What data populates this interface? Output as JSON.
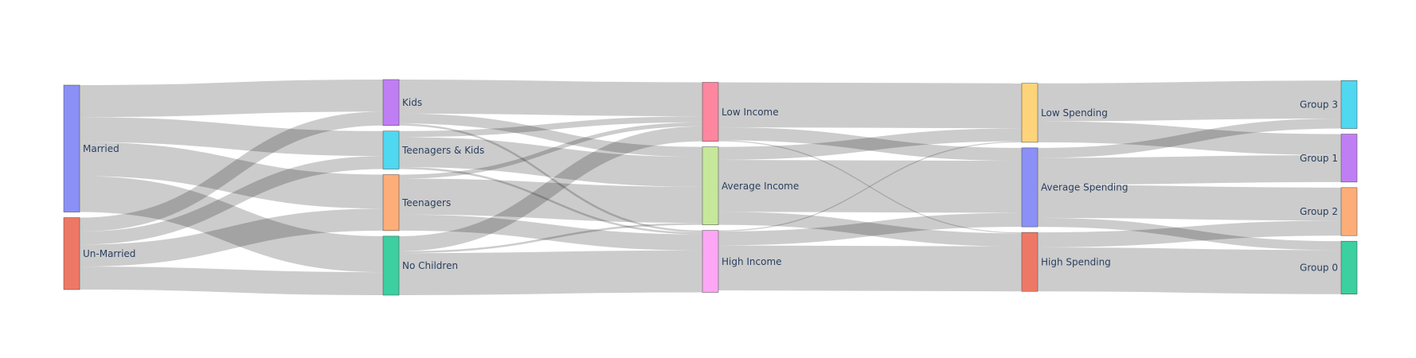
{
  "chart_data": {
    "type": "sankey",
    "title": "",
    "nodes": [
      {
        "id": "married",
        "label": "Married",
        "color": "#8a90f5",
        "column": 0
      },
      {
        "id": "unmarried",
        "label": "Un-Married",
        "color": "#ee7866",
        "column": 0
      },
      {
        "id": "kids",
        "label": "Kids",
        "color": "#c07ef5",
        "column": 1
      },
      {
        "id": "teen_kids",
        "label": "Teenagers & Kids",
        "color": "#4fd8f0",
        "column": 1
      },
      {
        "id": "teenagers",
        "label": "Teenagers",
        "color": "#fdad78",
        "column": 1
      },
      {
        "id": "no_children",
        "label": "No Children",
        "color": "#3ccf9f",
        "column": 1
      },
      {
        "id": "low_income",
        "label": "Low Income",
        "color": "#ff869f",
        "column": 2
      },
      {
        "id": "avg_income",
        "label": "Average Income",
        "color": "#c6e89a",
        "column": 2
      },
      {
        "id": "high_income",
        "label": "High Income",
        "color": "#fda6f5",
        "column": 2
      },
      {
        "id": "low_spending",
        "label": "Low Spending",
        "color": "#fdd47a",
        "column": 3
      },
      {
        "id": "avg_spending",
        "label": "Average Spending",
        "color": "#8a90f5",
        "column": 3
      },
      {
        "id": "high_spending",
        "label": "High Spending",
        "color": "#ee7866",
        "column": 3
      },
      {
        "id": "group3",
        "label": "Group 3",
        "color": "#4fd8f0",
        "column": 4
      },
      {
        "id": "group1",
        "label": "Group 1",
        "color": "#c07ef5",
        "column": 4
      },
      {
        "id": "group2",
        "label": "Group 2",
        "color": "#fdad78",
        "column": 4
      },
      {
        "id": "group0",
        "label": "Group 0",
        "color": "#3ccf9f",
        "column": 4
      }
    ],
    "links": [
      {
        "source": "married",
        "target": "kids",
        "value": 32
      },
      {
        "source": "married",
        "target": "teen_kids",
        "value": 25
      },
      {
        "source": "married",
        "target": "teenagers",
        "value": 34
      },
      {
        "source": "married",
        "target": "no_children",
        "value": 36
      },
      {
        "source": "unmarried",
        "target": "kids",
        "value": 14
      },
      {
        "source": "unmarried",
        "target": "teen_kids",
        "value": 13
      },
      {
        "source": "unmarried",
        "target": "teenagers",
        "value": 22
      },
      {
        "source": "unmarried",
        "target": "no_children",
        "value": 23
      },
      {
        "source": "kids",
        "target": "low_income",
        "value": 34
      },
      {
        "source": "kids",
        "target": "avg_income",
        "value": 10
      },
      {
        "source": "kids",
        "target": "high_income",
        "value": 2
      },
      {
        "source": "teen_kids",
        "target": "low_income",
        "value": 6
      },
      {
        "source": "teen_kids",
        "target": "avg_income",
        "value": 30
      },
      {
        "source": "teen_kids",
        "target": "high_income",
        "value": 2
      },
      {
        "source": "teenagers",
        "target": "low_income",
        "value": 4
      },
      {
        "source": "teenagers",
        "target": "avg_income",
        "value": 36
      },
      {
        "source": "teenagers",
        "target": "high_income",
        "value": 16
      },
      {
        "source": "no_children",
        "target": "low_income",
        "value": 15
      },
      {
        "source": "no_children",
        "target": "avg_income",
        "value": 2
      },
      {
        "source": "no_children",
        "target": "high_income",
        "value": 42
      },
      {
        "source": "low_income",
        "target": "low_spending",
        "value": 45
      },
      {
        "source": "low_income",
        "target": "avg_spending",
        "value": 13
      },
      {
        "source": "low_income",
        "target": "high_spending",
        "value": 1
      },
      {
        "source": "avg_income",
        "target": "low_spending",
        "value": 13
      },
      {
        "source": "avg_income",
        "target": "avg_spending",
        "value": 52
      },
      {
        "source": "avg_income",
        "target": "high_spending",
        "value": 13
      },
      {
        "source": "high_income",
        "target": "low_spending",
        "value": 1
      },
      {
        "source": "high_income",
        "target": "avg_spending",
        "value": 14
      },
      {
        "source": "high_income",
        "target": "high_spending",
        "value": 45
      },
      {
        "source": "low_spending",
        "target": "group3",
        "value": 38
      },
      {
        "source": "low_spending",
        "target": "group1",
        "value": 21
      },
      {
        "source": "avg_spending",
        "target": "group3",
        "value": 10
      },
      {
        "source": "avg_spending",
        "target": "group1",
        "value": 27
      },
      {
        "source": "avg_spending",
        "target": "group2",
        "value": 33
      },
      {
        "source": "avg_spending",
        "target": "group0",
        "value": 9
      },
      {
        "source": "high_spending",
        "target": "group2",
        "value": 15
      },
      {
        "source": "high_spending",
        "target": "group0",
        "value": 44
      }
    ]
  }
}
